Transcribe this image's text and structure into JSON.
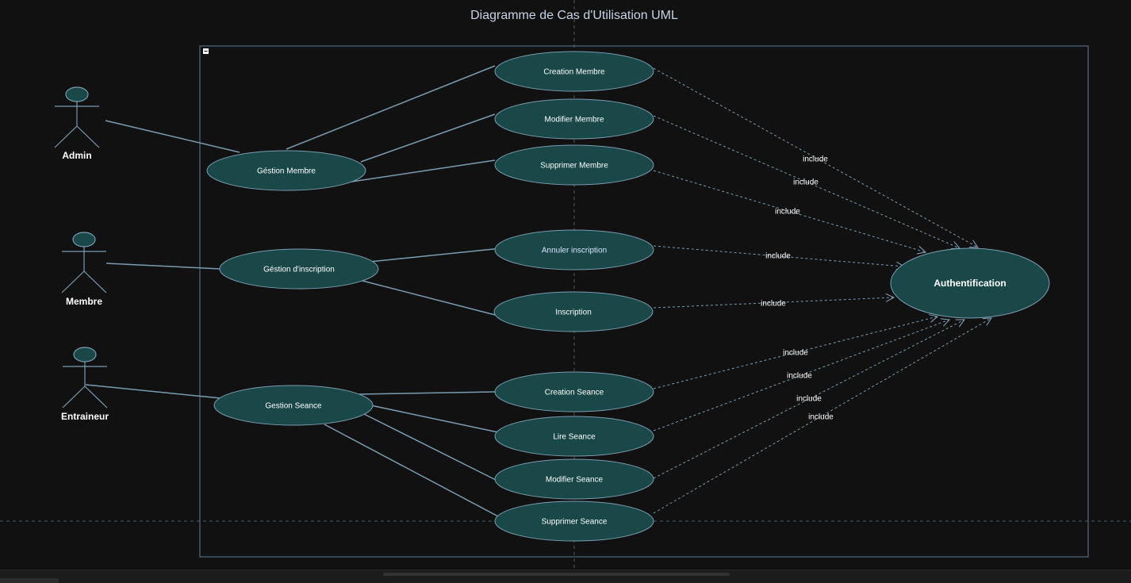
{
  "title": "Diagramme de Cas d'Utilisation UML",
  "colors": {
    "background": "#111111",
    "usecase_fill": "#1a4747",
    "usecase_stroke": "#7a9cb0",
    "line": "#7a9cb0",
    "text": "#ffffff"
  },
  "actors": [
    {
      "id": "admin",
      "label": "Admin"
    },
    {
      "id": "membre",
      "label": "Membre"
    },
    {
      "id": "entraineur",
      "label": "Entraineur"
    }
  ],
  "use_cases": [
    {
      "id": "gestion_membre",
      "label": "Géstion Membre"
    },
    {
      "id": "gestion_inscription",
      "label": "Géstion d'inscription"
    },
    {
      "id": "gestion_seance",
      "label": "Gestion Seance"
    },
    {
      "id": "creation_membre",
      "label": "Creation Membre"
    },
    {
      "id": "modifier_membre",
      "label": "Modifier Membre"
    },
    {
      "id": "supprimer_membre",
      "label": "Supprimer Membre"
    },
    {
      "id": "annuler_inscription",
      "label": "Annuler inscription"
    },
    {
      "id": "inscription",
      "label": "Inscription"
    },
    {
      "id": "creation_seance",
      "label": "Creation Seance"
    },
    {
      "id": "lire_seance",
      "label": "Lire Seance"
    },
    {
      "id": "modifier_seance",
      "label": "Modifier Seance"
    },
    {
      "id": "supprimer_seance",
      "label": "Supprimer Seance"
    },
    {
      "id": "authentification",
      "label": "Authentification"
    }
  ],
  "include_label": "include",
  "associations": [
    [
      "admin",
      "gestion_membre"
    ],
    [
      "membre",
      "gestion_inscription"
    ],
    [
      "entraineur",
      "gestion_seance"
    ],
    [
      "gestion_membre",
      "creation_membre"
    ],
    [
      "gestion_membre",
      "modifier_membre"
    ],
    [
      "gestion_membre",
      "supprimer_membre"
    ],
    [
      "gestion_inscription",
      "annuler_inscription"
    ],
    [
      "gestion_inscription",
      "inscription"
    ],
    [
      "gestion_seance",
      "creation_seance"
    ],
    [
      "gestion_seance",
      "lire_seance"
    ],
    [
      "gestion_seance",
      "modifier_seance"
    ],
    [
      "gestion_seance",
      "supprimer_seance"
    ]
  ],
  "includes": [
    [
      "creation_membre",
      "authentification"
    ],
    [
      "modifier_membre",
      "authentification"
    ],
    [
      "supprimer_membre",
      "authentification"
    ],
    [
      "annuler_inscription",
      "authentification"
    ],
    [
      "inscription",
      "authentification"
    ],
    [
      "creation_seance",
      "authentification"
    ],
    [
      "lire_seance",
      "authentification"
    ],
    [
      "modifier_seance",
      "authentification"
    ],
    [
      "supprimer_seance",
      "authentification"
    ]
  ]
}
